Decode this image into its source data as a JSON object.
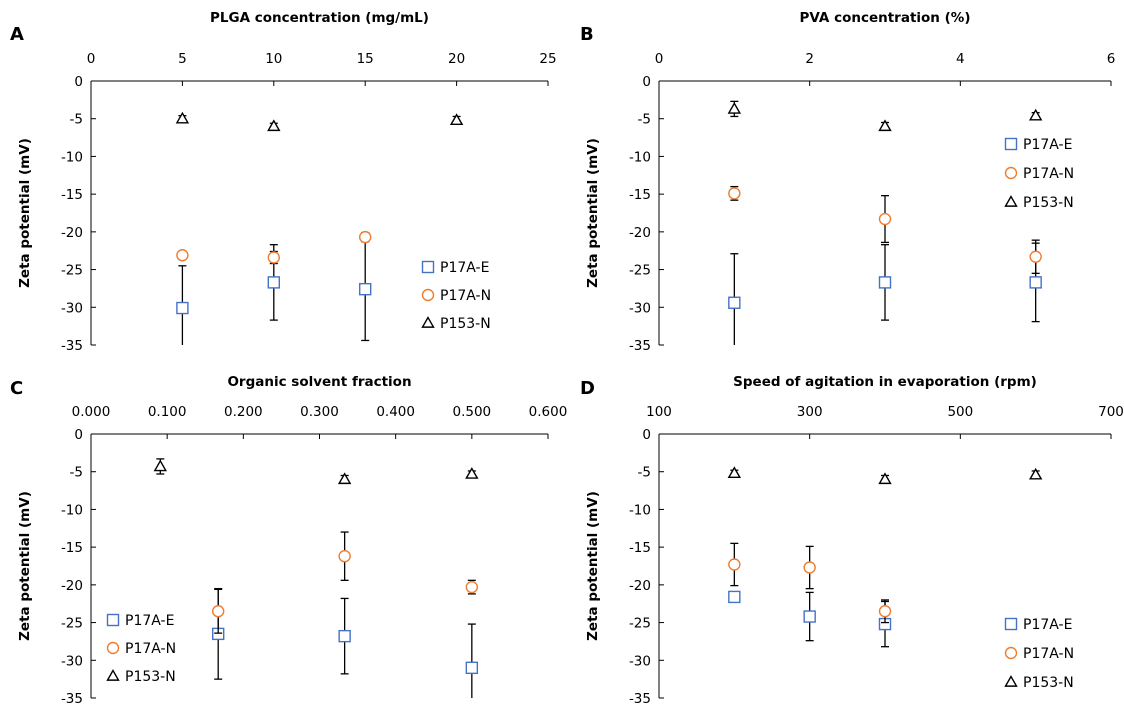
{
  "colors": {
    "P17A-E": "#4472C4",
    "P17A-N": "#ED7D31",
    "P153-N": "#000000"
  },
  "chart_data": [
    {
      "panel": "A",
      "type": "scatter",
      "xlabel": "PLGA concentration  (mg/mL)",
      "ylabel": "Zeta potential (mV)",
      "xlim": [
        0,
        25
      ],
      "xticks": [
        0,
        5,
        10,
        15,
        20,
        25
      ],
      "xtick_decimals": 0,
      "ylim": [
        -35,
        0
      ],
      "yticks": [
        0,
        -5,
        -10,
        -15,
        -20,
        -25,
        -30,
        -35
      ],
      "legend": {
        "position": "bottom-right"
      },
      "series": [
        {
          "name": "P17A-E",
          "marker": "square",
          "x": [
            5,
            10,
            15
          ],
          "y": [
            -30.1,
            -26.7,
            -27.6
          ],
          "err": [
            5.6,
            5.0,
            6.8
          ]
        },
        {
          "name": "P17A-N",
          "marker": "circle",
          "x": [
            5,
            10,
            15
          ],
          "y": [
            -23.1,
            -23.4,
            -20.7
          ],
          "err": [
            0.5,
            0.8,
            0.6
          ]
        },
        {
          "name": "P153-N",
          "marker": "triangle",
          "x": [
            5,
            10,
            20
          ],
          "y": [
            -5.0,
            -6.0,
            -5.2
          ],
          "err": [
            0.4,
            0.4,
            0.5
          ]
        }
      ]
    },
    {
      "panel": "B",
      "type": "scatter",
      "xlabel": "PVA concentration  (%)",
      "ylabel": "Zeta potential (mV)",
      "xlim": [
        0,
        6
      ],
      "xticks": [
        0,
        2,
        4,
        6
      ],
      "xtick_decimals": 0,
      "ylim": [
        -35,
        0
      ],
      "yticks": [
        0,
        -5,
        -10,
        -15,
        -20,
        -25,
        -30,
        -35
      ],
      "legend": {
        "position": "top-right"
      },
      "series": [
        {
          "name": "P17A-E",
          "marker": "square",
          "x": [
            1,
            3,
            5
          ],
          "y": [
            -29.4,
            -26.7,
            -26.7
          ],
          "err": [
            6.5,
            5.0,
            5.2
          ]
        },
        {
          "name": "P17A-N",
          "marker": "circle",
          "x": [
            1,
            3,
            5
          ],
          "y": [
            -14.9,
            -18.3,
            -23.3
          ],
          "err": [
            0.9,
            3.1,
            2.2
          ]
        },
        {
          "name": "P153-N",
          "marker": "triangle",
          "x": [
            1,
            3,
            5
          ],
          "y": [
            -3.7,
            -6.0,
            -4.6
          ],
          "err": [
            1.0,
            0.5,
            0.4
          ]
        }
      ]
    },
    {
      "panel": "C",
      "type": "scatter",
      "xlabel": "Organic solvent fraction",
      "ylabel": "Zeta potential (mV)",
      "xlim": [
        0,
        0.6
      ],
      "xticks": [
        0,
        0.1,
        0.2,
        0.3,
        0.4,
        0.5,
        0.6
      ],
      "xtick_decimals": 3,
      "ylim": [
        -35,
        0
      ],
      "yticks": [
        0,
        -5,
        -10,
        -15,
        -20,
        -25,
        -30,
        -35
      ],
      "legend": {
        "position": "bottom-left"
      },
      "series": [
        {
          "name": "P17A-E",
          "marker": "square",
          "x": [
            0.167,
            0.333,
            0.5
          ],
          "y": [
            -26.5,
            -26.8,
            -31.0
          ],
          "err": [
            6.0,
            5.0,
            5.8
          ]
        },
        {
          "name": "P17A-N",
          "marker": "circle",
          "x": [
            0.167,
            0.333,
            0.5
          ],
          "y": [
            -23.5,
            -16.2,
            -20.3
          ],
          "err": [
            2.9,
            3.2,
            0.9
          ]
        },
        {
          "name": "P153-N",
          "marker": "triangle",
          "x": [
            0.091,
            0.333,
            0.5
          ],
          "y": [
            -4.3,
            -6.0,
            -5.3
          ],
          "err": [
            1.0,
            0.5,
            0.4
          ]
        }
      ]
    },
    {
      "panel": "D",
      "type": "scatter",
      "xlabel": "Speed of agitation in evaporation (rpm)",
      "ylabel": "Zeta potential (mV)",
      "xlim": [
        100,
        700
      ],
      "xticks": [
        100,
        300,
        500,
        700
      ],
      "xtick_decimals": 0,
      "ylim": [
        -35,
        0
      ],
      "yticks": [
        0,
        -5,
        -10,
        -15,
        -20,
        -25,
        -30,
        -35
      ],
      "legend": {
        "position": "bottom-right"
      },
      "series": [
        {
          "name": "P17A-E",
          "marker": "square",
          "x": [
            200,
            300,
            400
          ],
          "y": [
            -21.6,
            -24.2,
            -25.2
          ],
          "err": [
            0.5,
            3.2,
            3.0
          ]
        },
        {
          "name": "P17A-N",
          "marker": "circle",
          "x": [
            200,
            300,
            400
          ],
          "y": [
            -17.3,
            -17.7,
            -23.5
          ],
          "err": [
            2.8,
            2.8,
            1.5
          ]
        },
        {
          "name": "P153-N",
          "marker": "triangle",
          "x": [
            200,
            400,
            600
          ],
          "y": [
            -5.2,
            -6.0,
            -5.4
          ],
          "err": [
            0.4,
            0.5,
            0.5
          ]
        }
      ]
    }
  ]
}
